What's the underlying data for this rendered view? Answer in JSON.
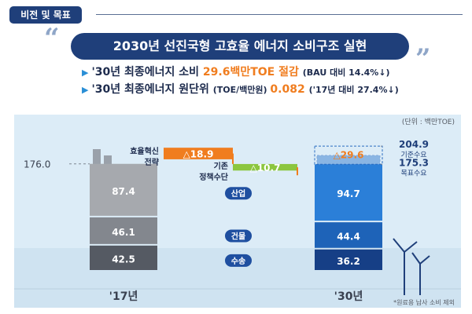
{
  "section_tag": "비전 및 목표",
  "banner": {
    "quote_open": "“",
    "quote_close": "”",
    "title": "2030년 선진국형 고효율 에너지 소비구조 실현"
  },
  "goals": [
    {
      "lead": "'30년 최종에너지 소비 ",
      "highlight": "29.6백만TOE 절감",
      "note": "(BAU 대비 14.4%↓)"
    },
    {
      "lead": "'30년 최종에너지 원단위 ",
      "unit": "(TOE/백만원) ",
      "highlight": "0.082",
      "note": "('17년 대비 27.4%↓)"
    }
  ],
  "unit_note": "(단위 : 백만TOE)",
  "footnote": "*원료용 납사 소비 제외",
  "colors": {
    "navy": "#1f3f7a",
    "orange": "#f07d1f",
    "green": "#8cc63f",
    "blue": "#2a8fd6",
    "gray_dark": "#555a63",
    "gray_mid": "#83878e",
    "gray_light": "#a6a9ae"
  },
  "chart_data": {
    "type": "bar",
    "title": "",
    "categories": [
      "'17년",
      "'30년"
    ],
    "series": [
      {
        "name": "산업",
        "values": [
          87.4,
          94.7
        ]
      },
      {
        "name": "건물",
        "values": [
          46.1,
          44.4
        ]
      },
      {
        "name": "수송",
        "values": [
          42.5,
          36.2
        ]
      }
    ],
    "totals": [
      176.0,
      175.3
    ],
    "bau": {
      "value": 204.9,
      "label": "기준수요"
    },
    "target": {
      "value": 175.3,
      "label": "목표수요"
    },
    "reductions": [
      {
        "label": "효율혁신\n전략",
        "value_label": "△18.9",
        "value": 18.9
      },
      {
        "label": "기존\n정책수단",
        "value_label": "△10.7",
        "value": 10.7
      }
    ],
    "total_reduction": {
      "value_label": "△29.6",
      "value": 29.6
    },
    "total_labels": [
      "176.0",
      "175.3"
    ],
    "bau_value_label": "204.9",
    "value_labels": [
      [
        "87.4",
        "94.7"
      ],
      [
        "46.1",
        "44.4"
      ],
      [
        "42.5",
        "36.2"
      ]
    ]
  }
}
